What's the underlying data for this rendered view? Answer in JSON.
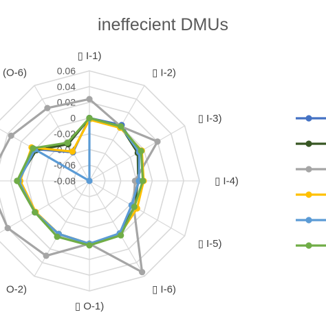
{
  "chart_data": {
    "type": "radar",
    "title": "ineffecient DMUs",
    "categories": [
      "▯ I-1)",
      "▯ I-2)",
      "▯ I-3)",
      "▯ I-4)",
      "▯ I-5)",
      "▯ I-6)",
      "▯ O-1)",
      "O-2)",
      "",
      "",
      "",
      "(O-6)"
    ],
    "rlim": [
      -0.08,
      0.06
    ],
    "r_ticks": [
      "0.06",
      "0.04",
      "0.02",
      "0",
      "-0.02",
      "-0.04",
      "-0.06",
      "-0.08"
    ],
    "grid": true,
    "legend_position": "right",
    "series": [
      {
        "color": "#4472C4",
        "values": [
          0.0,
          0.002,
          -0.008,
          -0.017,
          -0.018,
          -0.002,
          0.0,
          -0.002,
          0.0,
          0.01,
          0.001,
          -0.038
        ]
      },
      {
        "color": "#375623",
        "values": [
          0.0,
          0.0,
          -0.009,
          -0.018,
          -0.014,
          -0.002,
          0.0,
          -0.002,
          0.0,
          0.012,
          -0.002,
          -0.026
        ]
      },
      {
        "color": "#A5A5A5",
        "values": [
          0.024,
          0.0,
          0.02,
          -0.022,
          -0.015,
          0.054,
          0.0,
          0.03,
          0.04,
          0.05,
          0.035,
          0.027
        ]
      },
      {
        "color": "#FFC000",
        "values": [
          -0.002,
          -0.002,
          -0.003,
          -0.011,
          -0.01,
          -0.002,
          0.0,
          -0.002,
          -0.001,
          0.008,
          0.005,
          -0.037
        ]
      },
      {
        "color": "#5B9BD5",
        "values": [
          0.0,
          0.0,
          -0.007,
          -0.017,
          -0.018,
          -0.003,
          0.0,
          -0.002,
          0.0,
          0.01,
          0.0,
          -0.08
        ]
      },
      {
        "color": "#70AD47",
        "values": [
          0.0,
          0.0,
          -0.004,
          -0.012,
          -0.014,
          0.0,
          0.002,
          0.002,
          0.0,
          0.012,
          0.003,
          -0.024
        ]
      }
    ]
  }
}
